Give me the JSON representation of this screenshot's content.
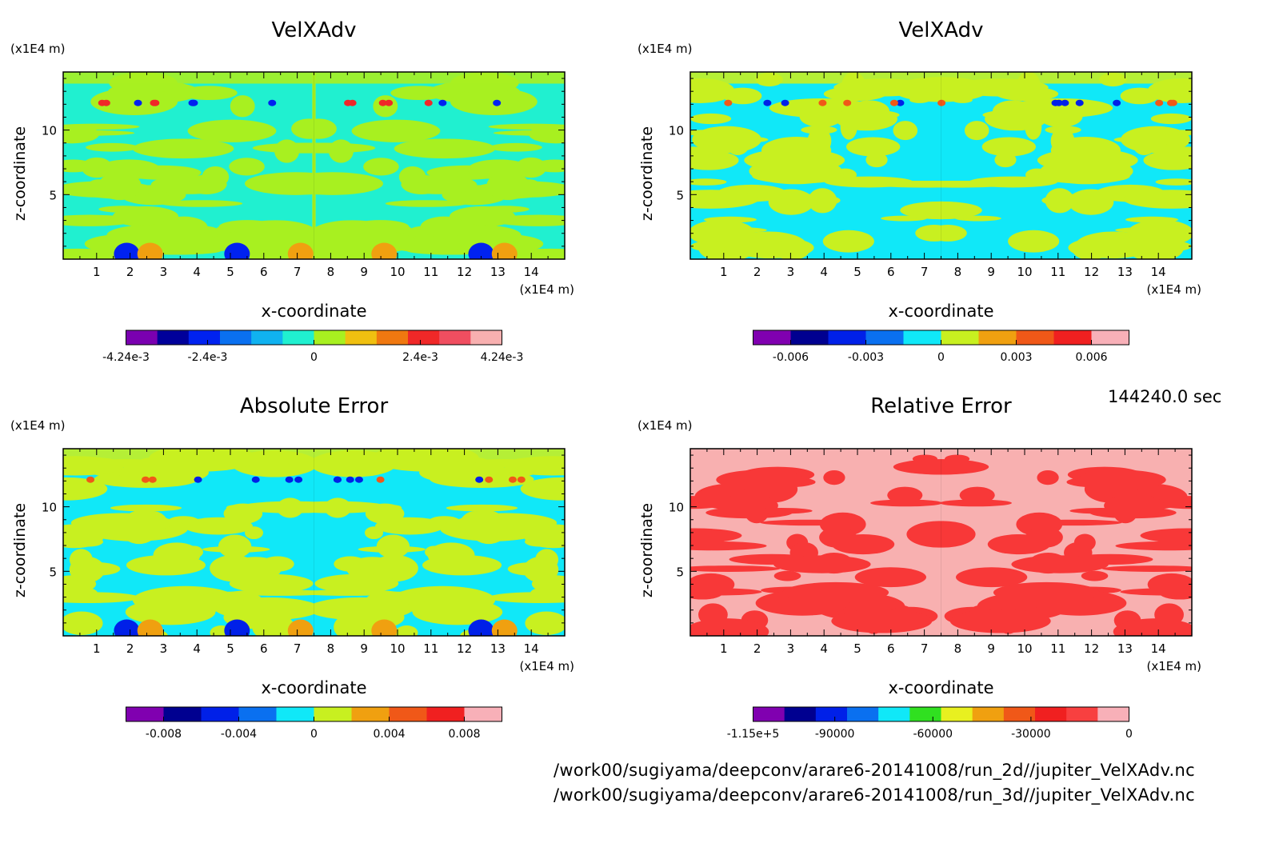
{
  "time_label": "144240.0 sec",
  "file_paths": [
    "/work00/sugiyama/deepconv/arare6-20141008/run_2d//jupiter_VelXAdv.nc",
    "/work00/sugiyama/deepconv/arare6-20141008/run_3d//jupiter_VelXAdv.nc"
  ],
  "chart_data": [
    {
      "type": "heatmap",
      "title": "VelXAdv",
      "xlabel": "x-coordinate",
      "ylabel": "z-coordinate",
      "x_unit": "(x1E4 m)",
      "y_unit": "(x1E4 m)",
      "xlim": [
        0,
        15
      ],
      "ylim": [
        0,
        14.5
      ],
      "x_ticks": [
        "1",
        "2",
        "3",
        "4",
        "5",
        "6",
        "7",
        "8",
        "9",
        "10",
        "11",
        "12",
        "13",
        "14"
      ],
      "y_ticks": [
        "5",
        "10"
      ],
      "colorbar": {
        "colors": [
          "#7a00b0",
          "#00009a",
          "#0022f0",
          "#0a70f0",
          "#10b2f0",
          "#20f0d0",
          "#a8f020",
          "#f0c010",
          "#f07810",
          "#f02828",
          "#f04e60",
          "#f8b0b0"
        ],
        "tick_labels": [
          "-4.24e-3",
          "-2.4e-3",
          "0",
          "2.4e-3",
          "4.24e-3"
        ],
        "tick_values": [
          -0.00424,
          -0.0024,
          0,
          0.0024,
          0.00424
        ],
        "range": [
          -0.00424,
          0.00424
        ]
      },
      "field": {
        "base": "#20f0d0",
        "alt": "#a8f020",
        "alt_fraction": 0.45,
        "center_band": true,
        "low_blobs": true,
        "seed": 11
      }
    },
    {
      "type": "heatmap",
      "title": "VelXAdv",
      "xlabel": "x-coordinate",
      "ylabel": "z-coordinate",
      "x_unit": "(x1E4 m)",
      "y_unit": "(x1E4 m)",
      "xlim": [
        0,
        15
      ],
      "ylim": [
        0,
        14.5
      ],
      "x_ticks": [
        "1",
        "2",
        "3",
        "4",
        "5",
        "6",
        "7",
        "8",
        "9",
        "10",
        "11",
        "12",
        "13",
        "14"
      ],
      "y_ticks": [
        "5",
        "10"
      ],
      "colorbar": {
        "colors": [
          "#8000b0",
          "#000090",
          "#0020e8",
          "#0a70f0",
          "#10e8f8",
          "#c8f020",
          "#f0a010",
          "#f05818",
          "#f02020",
          "#f8b0b8"
        ],
        "tick_labels": [
          "-0.006",
          "-0.003",
          "0",
          "0.003",
          "0.006"
        ],
        "tick_values": [
          -0.006,
          -0.003,
          0,
          0.003,
          0.006
        ],
        "range": [
          -0.0075,
          0.0075
        ]
      },
      "field": {
        "base": "#10e8f8",
        "alt": "#c8f020",
        "alt_fraction": 0.5,
        "center_band": false,
        "low_blobs": false,
        "seed": 23
      }
    },
    {
      "type": "heatmap",
      "title": "Absolute Error",
      "xlabel": "x-coordinate",
      "ylabel": "z-coordinate",
      "x_unit": "(x1E4 m)",
      "y_unit": "(x1E4 m)",
      "xlim": [
        0,
        15
      ],
      "ylim": [
        0,
        14.5
      ],
      "x_ticks": [
        "1",
        "2",
        "3",
        "4",
        "5",
        "6",
        "7",
        "8",
        "9",
        "10",
        "11",
        "12",
        "13",
        "14"
      ],
      "y_ticks": [
        "5",
        "10"
      ],
      "colorbar": {
        "colors": [
          "#8000b0",
          "#000090",
          "#0020e8",
          "#0a70f0",
          "#10e8f8",
          "#c8f020",
          "#f0a010",
          "#f05818",
          "#f02020",
          "#f8b0b8"
        ],
        "tick_labels": [
          "-0.008",
          "-0.004",
          "0",
          "0.004",
          "0.008"
        ],
        "tick_values": [
          -0.008,
          -0.004,
          0,
          0.004,
          0.008
        ],
        "range": [
          -0.01,
          0.01
        ]
      },
      "field": {
        "base": "#10e8f8",
        "alt": "#c8f020",
        "alt_fraction": 0.5,
        "center_band": false,
        "low_blobs": true,
        "seed": 37
      }
    },
    {
      "type": "heatmap",
      "title": "Relative Error",
      "xlabel": "x-coordinate",
      "ylabel": "z-coordinate",
      "x_unit": "(x1E4 m)",
      "y_unit": "(x1E4 m)",
      "xlim": [
        0,
        15
      ],
      "ylim": [
        0,
        14.5
      ],
      "x_ticks": [
        "1",
        "2",
        "3",
        "4",
        "5",
        "6",
        "7",
        "8",
        "9",
        "10",
        "11",
        "12",
        "13",
        "14"
      ],
      "y_ticks": [
        "5",
        "10"
      ],
      "colorbar": {
        "colors": [
          "#8000b0",
          "#000090",
          "#0020e8",
          "#0a70f0",
          "#10e8f8",
          "#30e020",
          "#e8f020",
          "#f0a010",
          "#f05818",
          "#f02020",
          "#f84040",
          "#f8b0b8"
        ],
        "tick_labels": [
          "-1.15e+5",
          "-90000",
          "-60000",
          "-30000",
          "0"
        ],
        "tick_values": [
          -115000,
          -90000,
          -60000,
          -30000,
          0
        ],
        "range": [
          -115000,
          0
        ]
      },
      "field": {
        "base": "#f8b0b0",
        "alt": "#f83838",
        "alt_fraction": 0.42,
        "center_band": false,
        "low_blobs": false,
        "seed": 53
      }
    }
  ]
}
